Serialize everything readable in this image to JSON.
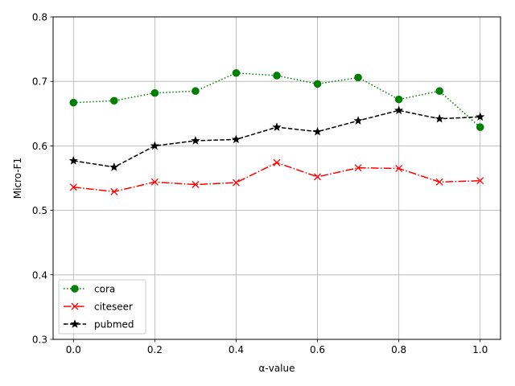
{
  "chart_data": {
    "type": "line",
    "title": "",
    "xlabel": "α-value",
    "ylabel": "Micro-F1",
    "xlim": [
      -0.05,
      1.05
    ],
    "ylim": [
      0.3,
      0.8
    ],
    "xticks": [
      0.0,
      0.2,
      0.4,
      0.6,
      0.8,
      1.0
    ],
    "xtick_labels": [
      "0.0",
      "0.2",
      "0.4",
      "0.6",
      "0.8",
      "1.0"
    ],
    "yticks": [
      0.3,
      0.4,
      0.5,
      0.6,
      0.7,
      0.8
    ],
    "ytick_labels": [
      "0.3",
      "0.4",
      "0.5",
      "0.6",
      "0.7",
      "0.8"
    ],
    "grid": true,
    "legend_position": "lower-left",
    "x": [
      0.0,
      0.1,
      0.2,
      0.3,
      0.4,
      0.5,
      0.6,
      0.7,
      0.8,
      0.9,
      1.0
    ],
    "series": [
      {
        "name": "cora",
        "color": "#008000",
        "linestyle": "dotted",
        "marker": "circle",
        "values": [
          0.667,
          0.67,
          0.682,
          0.685,
          0.713,
          0.709,
          0.696,
          0.706,
          0.672,
          0.685,
          0.629
        ]
      },
      {
        "name": "citeseer",
        "color": "#ff0000",
        "linestyle": "dashdot",
        "marker": "x",
        "values": [
          0.536,
          0.529,
          0.544,
          0.54,
          0.543,
          0.574,
          0.552,
          0.566,
          0.565,
          0.544,
          0.546
        ]
      },
      {
        "name": "pubmed",
        "color": "#000000",
        "linestyle": "dashed",
        "marker": "star",
        "values": [
          0.577,
          0.567,
          0.6,
          0.608,
          0.61,
          0.629,
          0.622,
          0.639,
          0.655,
          0.642,
          0.645
        ]
      }
    ]
  }
}
